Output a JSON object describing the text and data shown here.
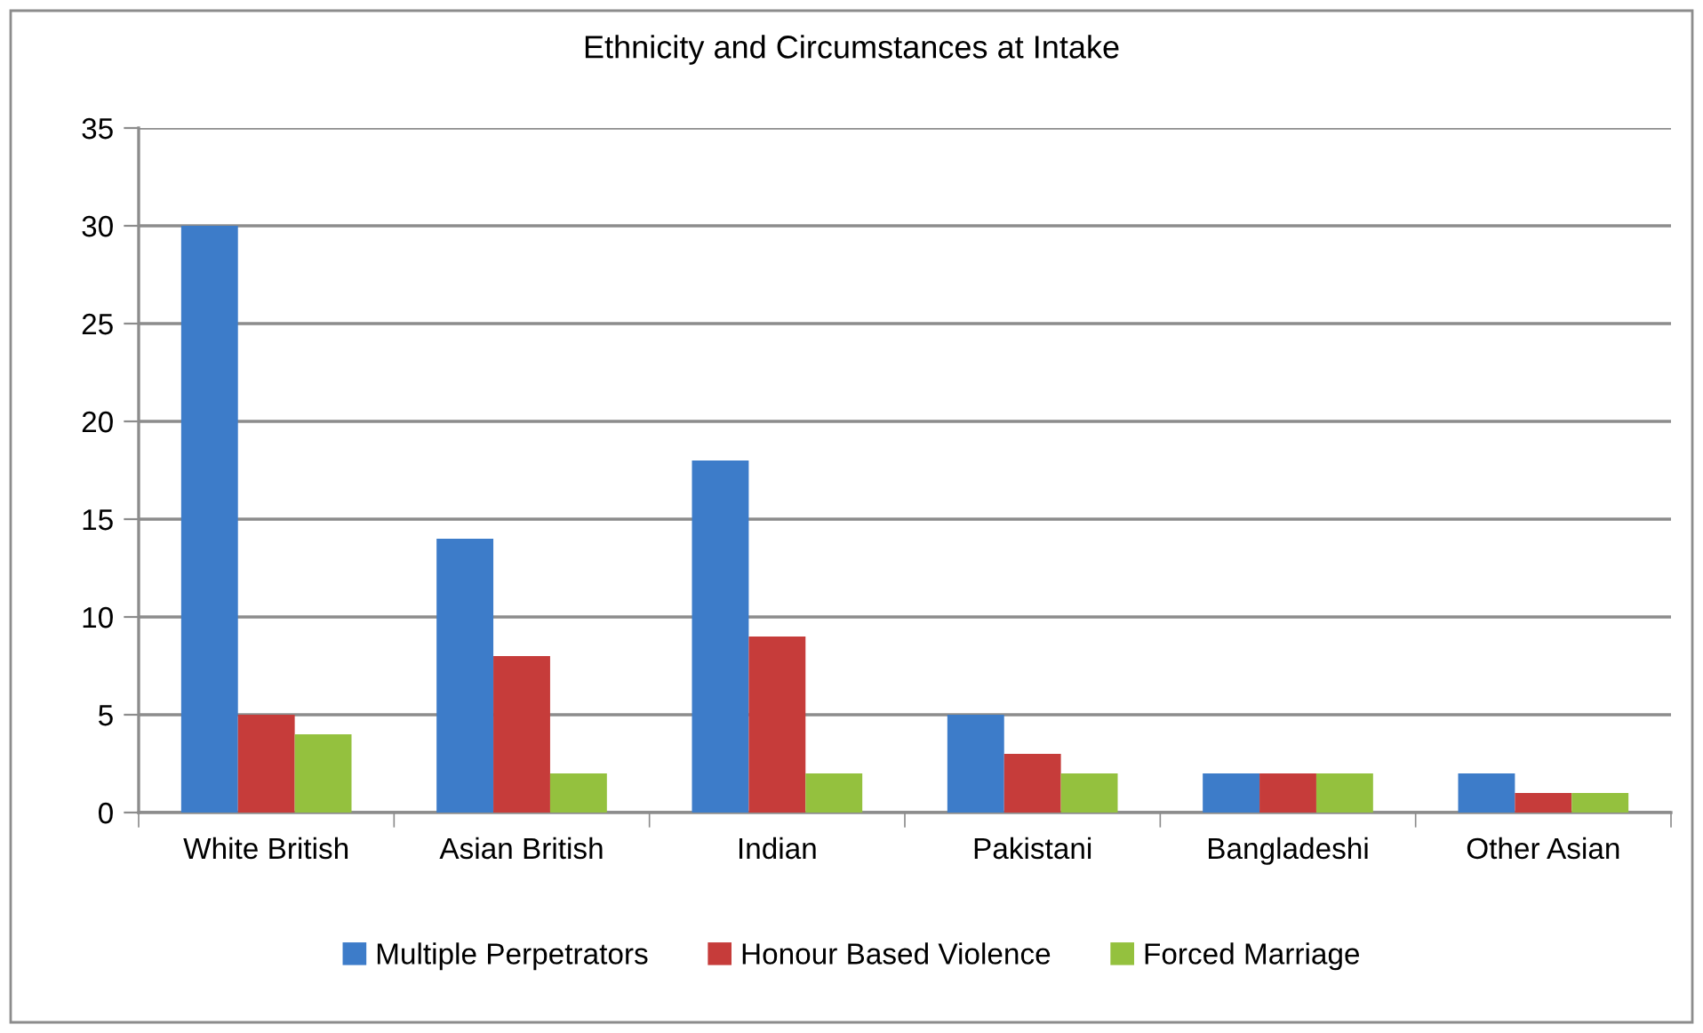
{
  "chart_data": {
    "type": "bar",
    "title": "Ethnicity and Circumstances at Intake",
    "categories": [
      "White British",
      "Asian British",
      "Indian",
      "Pakistani",
      "Bangladeshi",
      "Other Asian"
    ],
    "series": [
      {
        "name": "Multiple Perpetrators",
        "color": "#3d7cc9",
        "values": [
          30,
          14,
          18,
          5,
          2,
          2
        ]
      },
      {
        "name": "Honour Based Violence",
        "color": "#c63c3a",
        "values": [
          5,
          8,
          9,
          3,
          2,
          1
        ]
      },
      {
        "name": "Forced Marriage",
        "color": "#94c13e",
        "values": [
          4,
          2,
          2,
          2,
          2,
          1
        ]
      }
    ],
    "ylim": [
      0,
      35
    ],
    "yticks": [
      0,
      5,
      10,
      15,
      20,
      25,
      30,
      35
    ],
    "grid": "y",
    "legend": "bottom"
  }
}
